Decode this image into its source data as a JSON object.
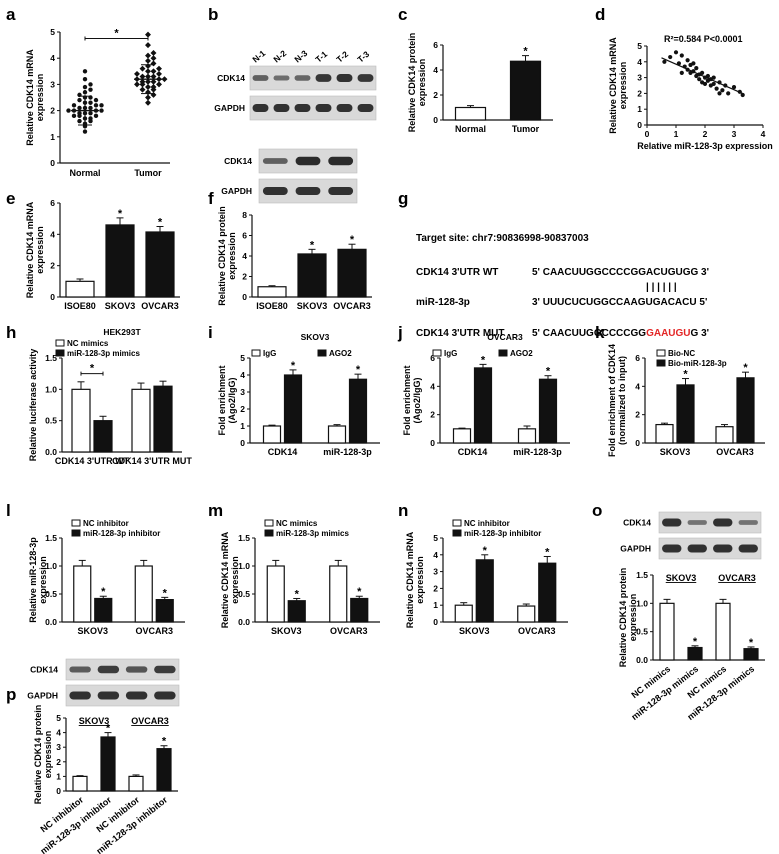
{
  "colors": {
    "black": "#111111",
    "white": "#ffffff",
    "mut": "#e32626",
    "band": "#1e1e1e",
    "blot_bg": "#d9d9d9"
  },
  "panel_labels": [
    "a",
    "b",
    "c",
    "d",
    "e",
    "f",
    "g",
    "h",
    "i",
    "j",
    "k",
    "l",
    "m",
    "n",
    "o",
    "p"
  ],
  "sig": "*",
  "chart_data": [
    {
      "id": "a",
      "type": "scatter",
      "ylabel": "Relative CDK14 mRNA expression",
      "ylim": [
        0,
        5
      ],
      "yticks": [
        0,
        1,
        2,
        3,
        4,
        5
      ],
      "categories": [
        "Normal",
        "Tumor"
      ],
      "means": [
        2.0,
        3.2
      ],
      "sd": [
        0.55,
        0.55
      ],
      "sig": "*",
      "normal_points": [
        1.2,
        1.4,
        1.5,
        1.6,
        1.6,
        1.7,
        1.7,
        1.8,
        1.8,
        1.8,
        1.9,
        1.9,
        1.9,
        2.0,
        2.0,
        2.0,
        2.0,
        2.1,
        2.1,
        2.1,
        2.2,
        2.2,
        2.2,
        2.3,
        2.3,
        2.4,
        2.4,
        2.5,
        2.5,
        2.6,
        2.7,
        2.8,
        2.9,
        3.0,
        3.2,
        3.5
      ],
      "tumor_points": [
        2.3,
        2.5,
        2.6,
        2.7,
        2.8,
        2.8,
        2.9,
        2.9,
        3.0,
        3.0,
        3.0,
        3.1,
        3.1,
        3.1,
        3.2,
        3.2,
        3.2,
        3.3,
        3.3,
        3.3,
        3.4,
        3.4,
        3.5,
        3.5,
        3.6,
        3.6,
        3.7,
        3.8,
        3.9,
        4.0,
        4.1,
        4.2,
        4.5,
        4.9
      ]
    },
    {
      "id": "c",
      "type": "bar",
      "ylabel": "Relative CDK14 protein expression",
      "ylim": [
        0,
        6
      ],
      "yticks": [
        0,
        2,
        4,
        6
      ],
      "categories": [
        "Normal",
        "Tumor"
      ],
      "values": [
        1.0,
        4.7
      ],
      "errors": [
        0.15,
        0.45
      ],
      "fills": [
        "white",
        "black"
      ],
      "sig": [
        null,
        "*"
      ]
    },
    {
      "id": "d",
      "type": "scatter",
      "xlabel": "Relative miR-128-3p expression",
      "ylabel": "Relative CDK14 mRNA expression",
      "xlim": [
        0,
        4
      ],
      "ylim": [
        0,
        5
      ],
      "xticks": [
        0,
        1,
        2,
        3,
        4
      ],
      "yticks": [
        0,
        1,
        2,
        3,
        4,
        5
      ],
      "annotation": "R²=0.584   P<0.0001",
      "points": [
        [
          0.6,
          4.0
        ],
        [
          0.8,
          4.3
        ],
        [
          1.0,
          4.6
        ],
        [
          1.1,
          3.9
        ],
        [
          1.2,
          4.4
        ],
        [
          1.3,
          3.7
        ],
        [
          1.4,
          4.1
        ],
        [
          1.4,
          3.5
        ],
        [
          1.5,
          3.8
        ],
        [
          1.5,
          3.3
        ],
        [
          1.6,
          3.4
        ],
        [
          1.6,
          3.9
        ],
        [
          1.7,
          3.6
        ],
        [
          1.7,
          3.1
        ],
        [
          1.8,
          3.2
        ],
        [
          1.8,
          2.9
        ],
        [
          1.9,
          3.3
        ],
        [
          1.9,
          2.7
        ],
        [
          2.0,
          3.0
        ],
        [
          2.0,
          2.6
        ],
        [
          2.1,
          2.8
        ],
        [
          2.1,
          3.1
        ],
        [
          2.2,
          2.5
        ],
        [
          2.2,
          2.9
        ],
        [
          2.3,
          2.6
        ],
        [
          2.3,
          3.0
        ],
        [
          2.4,
          2.3
        ],
        [
          2.5,
          2.7
        ],
        [
          2.6,
          2.2
        ],
        [
          2.7,
          2.5
        ],
        [
          2.8,
          2.0
        ],
        [
          3.0,
          2.4
        ],
        [
          3.2,
          2.1
        ],
        [
          3.3,
          1.9
        ],
        [
          1.2,
          3.3
        ],
        [
          2.5,
          2.0
        ]
      ],
      "fit": [
        [
          0.5,
          4.25
        ],
        [
          3.35,
          1.95
        ]
      ]
    },
    {
      "id": "e",
      "type": "bar",
      "ylabel": "Relative CDK14 mRNA expression",
      "ylim": [
        0,
        6
      ],
      "yticks": [
        0,
        2,
        4,
        6
      ],
      "categories": [
        "ISOE80",
        "SKOV3",
        "OVCAR3"
      ],
      "values": [
        1.0,
        4.6,
        4.15
      ],
      "errors": [
        0.15,
        0.45,
        0.35
      ],
      "fills": [
        "white",
        "black",
        "black"
      ],
      "sig": [
        null,
        "*",
        "*"
      ]
    },
    {
      "id": "f",
      "type": "bar",
      "ylabel": "Relative CDK14 protein expression",
      "ylim": [
        0,
        8
      ],
      "yticks": [
        0,
        2,
        4,
        6,
        8
      ],
      "categories": [
        "ISOE80",
        "SKOV3",
        "OVCAR3"
      ],
      "values": [
        1.0,
        4.2,
        4.65
      ],
      "errors": [
        0.1,
        0.45,
        0.5
      ],
      "fills": [
        "white",
        "black",
        "black"
      ],
      "sig": [
        null,
        "*",
        "*"
      ]
    },
    {
      "id": "h",
      "type": "bar",
      "title": "HEK293T",
      "ylabel": "Relative luciferase activity",
      "ylim": [
        0,
        1.5
      ],
      "yticks": [
        0.0,
        0.5,
        1.0,
        1.5
      ],
      "categories": [
        "CDK14 3'UTR WT",
        "CDK14 3'UTR MUT"
      ],
      "series": [
        {
          "name": "NC mimics",
          "values": [
            1.0,
            1.0
          ],
          "errors": [
            0.12,
            0.1
          ],
          "fill": "white"
        },
        {
          "name": "miR-128-3p mimics",
          "values": [
            0.5,
            1.05
          ],
          "errors": [
            0.07,
            0.08
          ],
          "fill": "black"
        }
      ],
      "sig_bracket": {
        "group": 0,
        "label": "*"
      }
    },
    {
      "id": "i",
      "type": "bar",
      "title": "SKOV3",
      "ylabel": "Fold enrichment (Ago2/IgG)",
      "ylim": [
        0,
        5
      ],
      "yticks": [
        0,
        1,
        2,
        3,
        4,
        5
      ],
      "categories": [
        "CDK14",
        "miR-128-3p"
      ],
      "series": [
        {
          "name": "IgG",
          "values": [
            1.0,
            1.0
          ],
          "errors": [
            0.05,
            0.08
          ],
          "fill": "white"
        },
        {
          "name": "AGO2",
          "values": [
            4.0,
            3.75
          ],
          "errors": [
            0.3,
            0.3
          ],
          "fill": "black"
        }
      ],
      "sig": [
        "*",
        "*"
      ]
    },
    {
      "id": "j",
      "type": "bar",
      "title": "OVCAR3",
      "ylabel": "Fold enrichment (Ago2/IgG)",
      "ylim": [
        0,
        6
      ],
      "yticks": [
        0,
        2,
        4,
        6
      ],
      "categories": [
        "CDK14",
        "miR-128-3p"
      ],
      "series": [
        {
          "name": "IgG",
          "values": [
            1.0,
            1.0
          ],
          "errors": [
            0.05,
            0.2
          ],
          "fill": "white"
        },
        {
          "name": "AGO2",
          "values": [
            5.3,
            4.5
          ],
          "errors": [
            0.25,
            0.25
          ],
          "fill": "black"
        }
      ],
      "sig": [
        "*",
        "*"
      ]
    },
    {
      "id": "k",
      "type": "bar",
      "ylabel": "Fold enrichment of CDK14 (normalized to input)",
      "ylim": [
        0,
        6
      ],
      "yticks": [
        0,
        2,
        4,
        6
      ],
      "categories": [
        "SKOV3",
        "OVCAR3"
      ],
      "series": [
        {
          "name": "Bio-NC",
          "values": [
            1.3,
            1.15
          ],
          "errors": [
            0.1,
            0.15
          ],
          "fill": "white"
        },
        {
          "name": "Bio-miR-128-3p",
          "values": [
            4.1,
            4.6
          ],
          "errors": [
            0.45,
            0.4
          ],
          "fill": "black"
        }
      ],
      "sig": [
        "*",
        "*"
      ]
    },
    {
      "id": "l",
      "type": "bar",
      "ylabel": "Relative miR-128-3p expression",
      "ylim": [
        0,
        1.5
      ],
      "yticks": [
        0.0,
        0.5,
        1.0,
        1.5
      ],
      "categories": [
        "SKOV3",
        "OVCAR3"
      ],
      "series": [
        {
          "name": "NC inhibitor",
          "values": [
            1.0,
            1.0
          ],
          "errors": [
            0.1,
            0.1
          ],
          "fill": "white"
        },
        {
          "name": "miR-128-3p inhibitor",
          "values": [
            0.42,
            0.4
          ],
          "errors": [
            0.04,
            0.04
          ],
          "fill": "black"
        }
      ],
      "sig": [
        "*",
        "*"
      ]
    },
    {
      "id": "m",
      "type": "bar",
      "ylabel": "Relative CDK14 mRNA expression",
      "ylim": [
        0,
        1.5
      ],
      "yticks": [
        0.0,
        0.5,
        1.0,
        1.5
      ],
      "categories": [
        "SKOV3",
        "OVCAR3"
      ],
      "series": [
        {
          "name": "NC mimics",
          "values": [
            1.0,
            1.0
          ],
          "errors": [
            0.1,
            0.1
          ],
          "fill": "white"
        },
        {
          "name": "miR-128-3p mimics",
          "values": [
            0.38,
            0.42
          ],
          "errors": [
            0.04,
            0.04
          ],
          "fill": "black"
        }
      ],
      "sig": [
        "*",
        "*"
      ]
    },
    {
      "id": "n",
      "type": "bar",
      "ylabel": "Relative CDK14 mRNA expression",
      "ylim": [
        0,
        5
      ],
      "yticks": [
        0,
        1,
        2,
        3,
        4,
        5
      ],
      "categories": [
        "SKOV3",
        "OVCAR3"
      ],
      "series": [
        {
          "name": "NC inhibitor",
          "values": [
            1.0,
            0.95
          ],
          "errors": [
            0.15,
            0.12
          ],
          "fill": "white"
        },
        {
          "name": "miR-128-3p inhibitor",
          "values": [
            3.7,
            3.5
          ],
          "errors": [
            0.3,
            0.4
          ],
          "fill": "black"
        }
      ],
      "sig": [
        "*",
        "*"
      ]
    },
    {
      "id": "o",
      "type": "bar",
      "ylabel": "Relative CDK14 protein expression",
      "ylim": [
        0,
        1.5
      ],
      "yticks": [
        0.0,
        0.5,
        1.0,
        1.5
      ],
      "group_labels": [
        "SKOV3",
        "OVCAR3"
      ],
      "categories": [
        "NC mimics",
        "miR-128-3p mimics",
        "NC mimics",
        "miR-128-3p mimics"
      ],
      "values": [
        1.0,
        0.22,
        1.0,
        0.2
      ],
      "errors": [
        0.07,
        0.03,
        0.07,
        0.03
      ],
      "fills": [
        "white",
        "black",
        "white",
        "black"
      ],
      "sig": [
        null,
        "*",
        null,
        "*"
      ]
    },
    {
      "id": "p",
      "type": "bar",
      "ylabel": "Relative CDK14 protein expression",
      "ylim": [
        0,
        5
      ],
      "yticks": [
        0,
        1,
        2,
        3,
        4,
        5
      ],
      "group_labels": [
        "SKOV3",
        "OVCAR3"
      ],
      "categories": [
        "NC inhibitor",
        "miR-128-3p inhibitor",
        "NC inhibitor",
        "miR-128-3p inhibitor"
      ],
      "values": [
        1.0,
        3.7,
        1.0,
        2.9
      ],
      "errors": [
        0.05,
        0.3,
        0.1,
        0.2
      ],
      "fills": [
        "white",
        "black",
        "white",
        "black"
      ],
      "sig": [
        null,
        "*",
        null,
        "*"
      ]
    }
  ],
  "blots": {
    "b": {
      "lanes": [
        "N-1",
        "N-2",
        "N-3",
        "T-1",
        "T-2",
        "T-3"
      ],
      "rows": [
        "CDK14",
        "GAPDH"
      ],
      "intensity": [
        [
          0.45,
          0.35,
          0.4,
          0.8,
          0.85,
          0.8
        ],
        [
          0.85,
          0.85,
          0.85,
          0.85,
          0.85,
          0.85
        ]
      ]
    },
    "f": {
      "rows": [
        "CDK14",
        "GAPDH"
      ],
      "intensity": [
        [
          0.45,
          0.9,
          0.9
        ],
        [
          0.85,
          0.85,
          0.85
        ]
      ]
    },
    "o": {
      "rows": [
        "CDK14",
        "GAPDH"
      ],
      "intensity": [
        [
          0.85,
          0.3,
          0.85,
          0.3
        ],
        [
          0.85,
          0.85,
          0.85,
          0.85
        ]
      ]
    },
    "p": {
      "rows": [
        "CDK14",
        "GAPDH"
      ],
      "intensity": [
        [
          0.5,
          0.75,
          0.55,
          0.75
        ],
        [
          0.85,
          0.85,
          0.85,
          0.85
        ]
      ]
    }
  },
  "panel_g": {
    "target_site": "Target site: chr7:90836998-90837003",
    "rows": [
      {
        "label": "CDK14 3'UTR WT",
        "seq": "5' CAACUUGGCCCCGGACUGUGG 3'",
        "seq_red": "",
        "seq_tail": ""
      },
      {
        "label": "miR-128-3p",
        "seq": "3' UUUCUCUGGCCAAGUGACACU 5'",
        "seq_red": "",
        "seq_tail": ""
      },
      {
        "label": "CDK14 3'UTR MUT",
        "seq": "5' CAACUUGGCCCCGG",
        "seq_red": "GAAUGU",
        "seq_tail": "G 3'"
      }
    ],
    "pairing": "| | | | | |"
  }
}
